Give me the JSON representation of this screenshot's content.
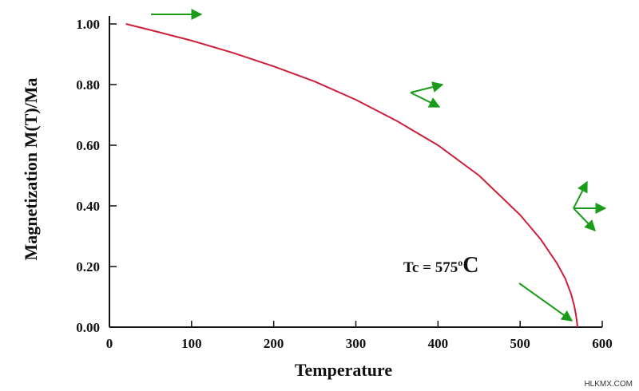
{
  "chart_data": {
    "type": "line",
    "xlabel": "Temperature",
    "ylabel": "Magnetization M(T)/Ma",
    "xlim": [
      0,
      600
    ],
    "ylim": [
      0,
      1
    ],
    "x_ticks": [
      "0",
      "100",
      "200",
      "300",
      "400",
      "500",
      "600"
    ],
    "y_ticks": [
      "0.00",
      "0.20",
      "0.40",
      "0.60",
      "0.80",
      "1.00"
    ],
    "grid": false,
    "series": [
      {
        "color": "#cc1f3a",
        "x": [
          20,
          50,
          100,
          150,
          200,
          250,
          300,
          350,
          400,
          450,
          500,
          525,
          545,
          555,
          562,
          566,
          568,
          569,
          570
        ],
        "y": [
          1.0,
          0.98,
          0.945,
          0.905,
          0.86,
          0.81,
          0.75,
          0.68,
          0.6,
          0.5,
          0.37,
          0.29,
          0.21,
          0.16,
          0.11,
          0.07,
          0.04,
          0.02,
          0.0
        ]
      }
    ],
    "annotations": [
      {
        "text": "Tc = 575",
        "superscript": "o",
        "suffix": "C"
      }
    ],
    "arrow_color": "#1a9c1a"
  },
  "watermark": "HLKMX.COM"
}
